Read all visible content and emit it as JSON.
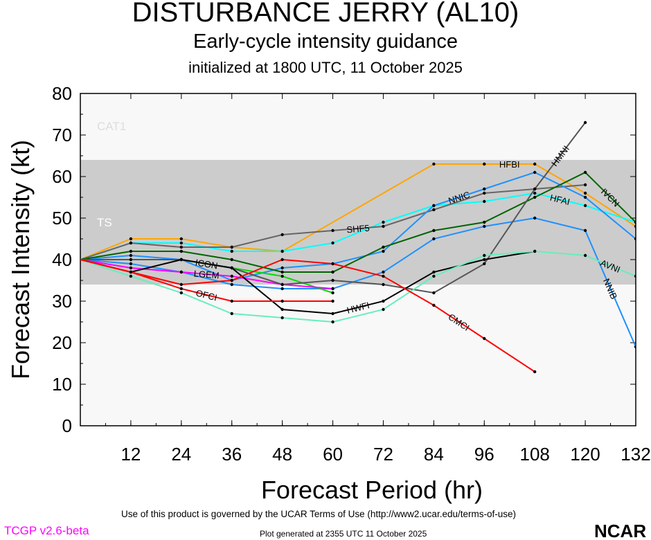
{
  "footer": {
    "terms": "Use of this product is governed by the UCAR Terms of Use (http://www2.ucar.edu/terms-of-use)",
    "version": "TCGP v2.6-beta",
    "generated": "Plot generated at 2355 UTC   11 October 2025",
    "logo": "NCAR"
  },
  "chart_data": {
    "type": "line",
    "title": "DISTURBANCE JERRY (AL10)",
    "subtitle": "Early-cycle intensity guidance",
    "initialized": "initialized at 1800 UTC, 11 October 2025",
    "xlabel": "Forecast Period (hr)",
    "ylabel": "Forecast Intensity (kt)",
    "xlim": [
      0,
      132
    ],
    "ylim": [
      0,
      80
    ],
    "xticks": [
      12,
      24,
      36,
      48,
      60,
      72,
      84,
      96,
      108,
      120,
      132
    ],
    "yticks": [
      0,
      10,
      20,
      30,
      40,
      50,
      60,
      70,
      80
    ],
    "bands": [
      {
        "label": "CAT1",
        "from": 64,
        "to": 80,
        "color": "#f8f8f8"
      },
      {
        "label": "TS",
        "from": 34,
        "to": 64,
        "color": "#cccccc"
      }
    ],
    "series": [
      {
        "name": "HFBI",
        "color": "#ffa500",
        "label_seg": 6,
        "x": [
          0,
          12,
          24,
          36,
          48,
          84,
          96,
          108,
          120,
          132
        ],
        "y": [
          40,
          45,
          45,
          43,
          42,
          63,
          63,
          63,
          56,
          48
        ]
      },
      {
        "name": "HFAI",
        "color": "#00ffff",
        "label_seg": 9,
        "x": [
          0,
          12,
          24,
          36,
          48,
          60,
          72,
          84,
          96,
          108,
          120,
          132
        ],
        "y": [
          40,
          44,
          44,
          42,
          42,
          44,
          49,
          53,
          54,
          56,
          53,
          49
        ]
      },
      {
        "name": "SHF5",
        "color": "#666666",
        "label_seg": 5,
        "x": [
          0,
          12,
          24,
          36,
          48,
          60,
          72,
          84,
          96,
          108,
          120
        ],
        "y": [
          40,
          44,
          43,
          43,
          46,
          47,
          48,
          52,
          56,
          57,
          58
        ]
      },
      {
        "name": "NNIC",
        "color": "#1e90ff",
        "label_seg": 7,
        "x": [
          0,
          12,
          24,
          36,
          48,
          60,
          72,
          84,
          96,
          108,
          120,
          132
        ],
        "y": [
          40,
          41,
          40,
          35,
          38,
          39,
          42,
          53,
          57,
          61,
          55,
          45
        ]
      },
      {
        "name": "NNIB",
        "color": "#1e90ff",
        "label_seg": 10,
        "x": [
          0,
          12,
          24,
          36,
          48,
          60,
          72,
          84,
          96,
          108,
          120,
          132
        ],
        "y": [
          40,
          39,
          37,
          34,
          33,
          33,
          37,
          45,
          48,
          50,
          47,
          19
        ]
      },
      {
        "name": "IVCN",
        "color": "#006400",
        "label_seg": 10,
        "x": [
          0,
          12,
          24,
          36,
          48,
          60,
          72,
          84,
          96,
          108,
          120,
          132
        ],
        "y": [
          40,
          42,
          42,
          40,
          37,
          37,
          43,
          47,
          49,
          55,
          61,
          49
        ]
      },
      {
        "name": "ICON",
        "color": "#00dd00",
        "label_seg": 2,
        "x": [
          0,
          12,
          24,
          36,
          48,
          60
        ],
        "y": [
          40,
          40,
          40,
          38,
          36,
          32
        ]
      },
      {
        "name": "LGEM",
        "color": "#ff00ff",
        "label_seg": 2,
        "x": [
          0,
          12,
          24,
          36,
          48,
          60
        ],
        "y": [
          40,
          38,
          37,
          36,
          34,
          33
        ]
      },
      {
        "name": "HMNI",
        "color": "#555555",
        "label_seg": 9,
        "x": [
          0,
          12,
          24,
          36,
          48,
          60,
          72,
          84,
          96,
          108,
          120
        ],
        "y": [
          40,
          40,
          40,
          38,
          34,
          35,
          34,
          32,
          39,
          57,
          73
        ]
      },
      {
        "name": "HWFI",
        "color": "#000000",
        "label_seg": 5,
        "x": [
          0,
          12,
          24,
          36,
          48,
          60,
          72,
          84,
          96,
          108
        ],
        "y": [
          40,
          37,
          40,
          38,
          28,
          27,
          30,
          37,
          40,
          42
        ]
      },
      {
        "name": "AVNI",
        "color": "#66eebb",
        "label_seg": 10,
        "x": [
          0,
          12,
          24,
          36,
          48,
          60,
          72,
          84,
          96,
          108,
          120,
          132
        ],
        "y": [
          40,
          36,
          32,
          27,
          26,
          25,
          28,
          36,
          41,
          42,
          41,
          36
        ]
      },
      {
        "name": "CMCI",
        "color": "#ff0000",
        "label_seg": 7,
        "x": [
          0,
          12,
          24,
          36,
          48,
          60,
          72,
          84,
          96,
          108
        ],
        "y": [
          40,
          37,
          34,
          35,
          40,
          39,
          36,
          29,
          21,
          13
        ]
      },
      {
        "name": "OFCI",
        "color": "#ff0000",
        "label_seg": 2,
        "x": [
          0,
          12,
          24,
          36,
          48,
          60
        ],
        "y": [
          40,
          37,
          33,
          30,
          30,
          30
        ]
      }
    ]
  }
}
